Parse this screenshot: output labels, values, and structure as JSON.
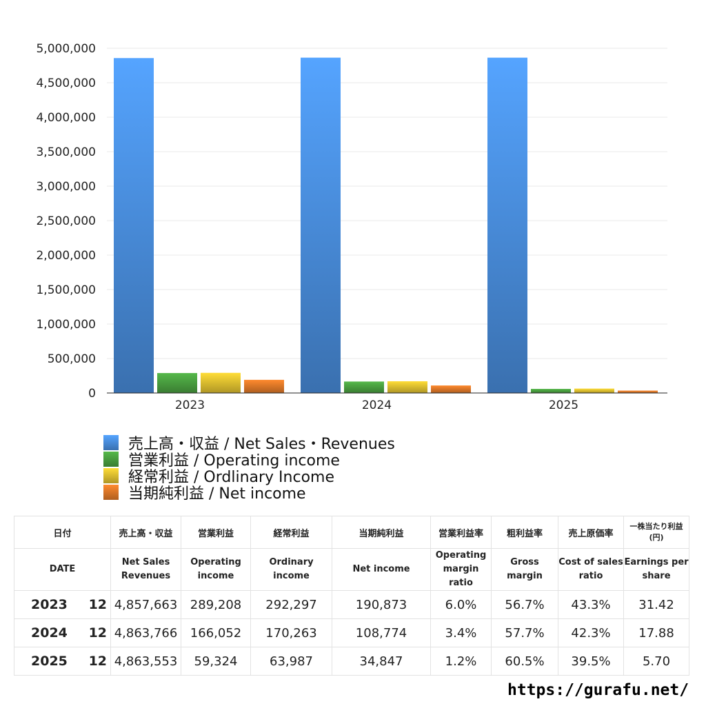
{
  "chart_data": {
    "type": "bar",
    "categories": [
      "2023",
      "2024",
      "2025"
    ],
    "series": [
      {
        "name": "売上高・収益 / Net Sales・Revenues",
        "color": "#4a8fe0",
        "values": [
          4857663,
          4863766,
          4863553
        ]
      },
      {
        "name": "営業利益 / Operating income",
        "color": "#4aa040",
        "values": [
          289208,
          166052,
          59324
        ]
      },
      {
        "name": "経常利益 / Ordlinary Income",
        "color": "#e0c030",
        "values": [
          292297,
          170263,
          63987
        ]
      },
      {
        "name": "当期純利益 / Net income",
        "color": "#e07828",
        "values": [
          190873,
          108774,
          34847
        ]
      }
    ],
    "ylim": [
      0,
      5000000
    ],
    "yticks": [
      "0",
      "500,000",
      "1,000,000",
      "1,500,000",
      "2,000,000",
      "2,500,000",
      "3,000,000",
      "3,500,000",
      "4,000,000",
      "4,500,000",
      "5,000,000"
    ],
    "grid": true,
    "legend_position": "bottom-left"
  },
  "table": {
    "headers_ja": [
      "日付",
      "売上高・収益",
      "営業利益",
      "経常利益",
      "当期純利益",
      "営業利益率",
      "粗利益率",
      "売上原価率",
      "一株当たり利益(円)"
    ],
    "headers_en": [
      "DATE",
      "Net Sales Revenues",
      "Operating income",
      "Ordinary income",
      "Net income",
      "Operating margin ratio",
      "Gross margin",
      "Cost of sales ratio",
      "Earnings per share"
    ],
    "rows": [
      {
        "year": "2023",
        "month": "12",
        "sales": "4,857,663",
        "operating": "289,208",
        "ordinary": "292,297",
        "net": "190,873",
        "op_margin": "6.0%",
        "gross_margin": "56.7%",
        "cost_ratio": "43.3%",
        "eps": "31.42"
      },
      {
        "year": "2024",
        "month": "12",
        "sales": "4,863,766",
        "operating": "166,052",
        "ordinary": "170,263",
        "net": "108,774",
        "op_margin": "3.4%",
        "gross_margin": "57.7%",
        "cost_ratio": "42.3%",
        "eps": "17.88"
      },
      {
        "year": "2025",
        "month": "12",
        "sales": "4,863,553",
        "operating": "59,324",
        "ordinary": "63,987",
        "net": "34,847",
        "op_margin": "1.2%",
        "gross_margin": "60.5%",
        "cost_ratio": "39.5%",
        "eps": "5.70"
      }
    ]
  },
  "footer": {
    "url": "https://gurafu.net/"
  }
}
